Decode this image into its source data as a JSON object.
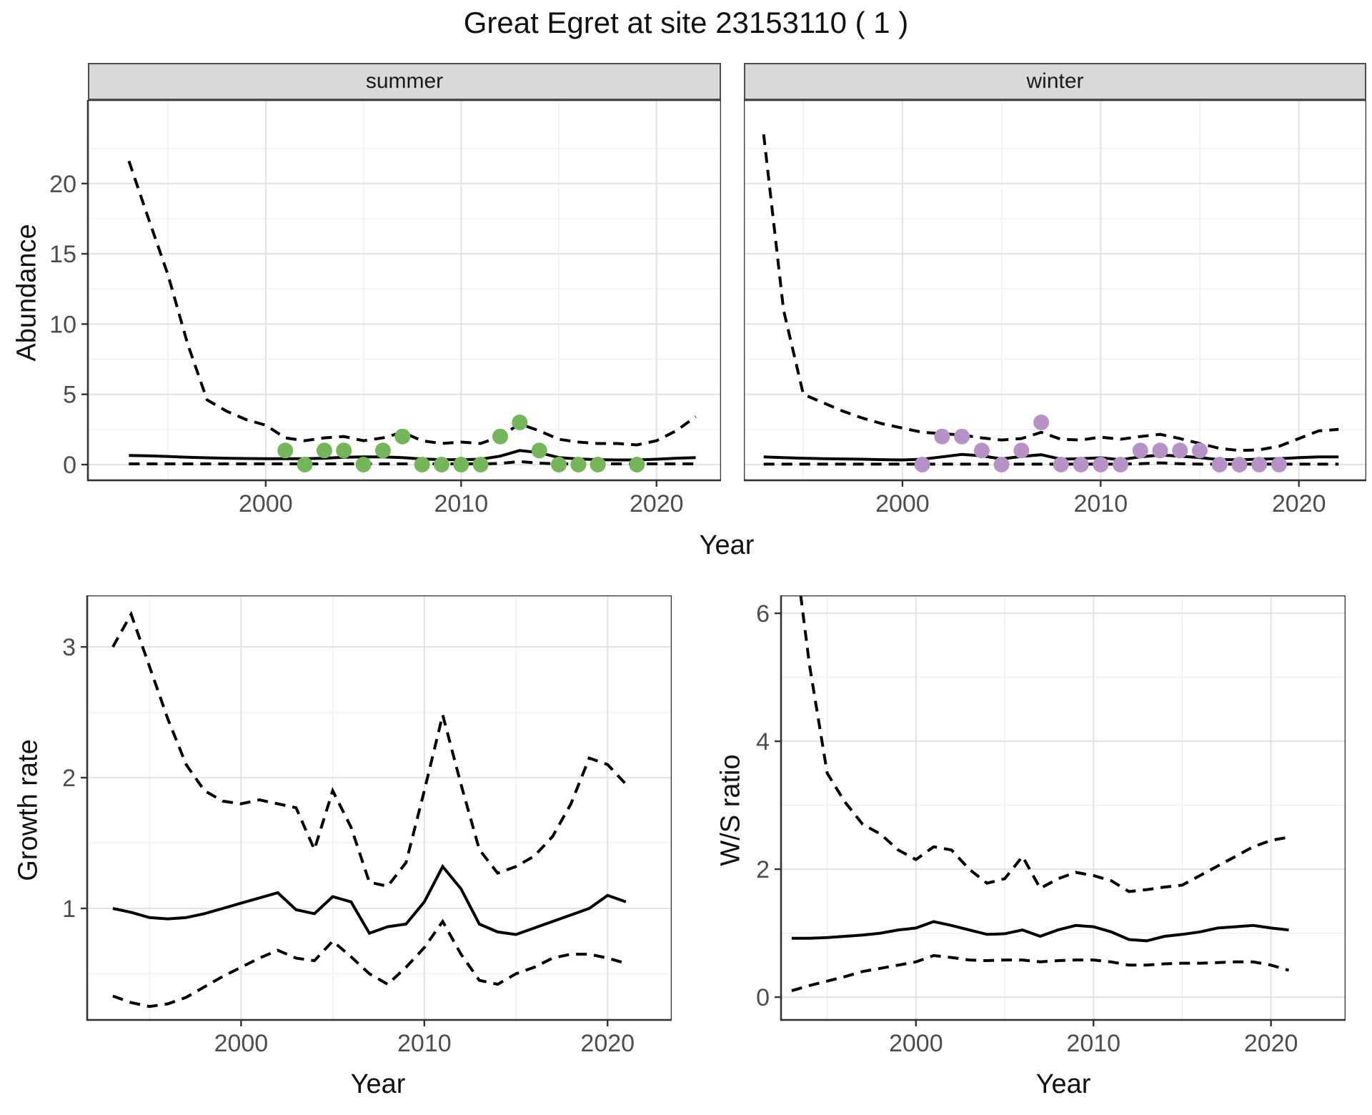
{
  "title": "Great Egret at site 23153110 ( 1 )",
  "facets": {
    "summer": "summer",
    "winter": "winter"
  },
  "axis_labels": {
    "abundance": "Abundance",
    "year_top": "Year",
    "growth": "Growth rate",
    "ws": "W/S ratio",
    "year_growth": "Year",
    "year_ws": "Year"
  },
  "colors": {
    "summer_points": "#74b659",
    "winter_points": "#b692c6",
    "line": "#000000",
    "grid_major": "#e4e4e4",
    "grid_minor": "#f0f0f0",
    "strip_bg": "#d9d9d9",
    "tick_text": "#4d4d4d",
    "border": "#333333",
    "panel_bg": "#ffffff"
  },
  "chart_data": [
    {
      "id": "summer-abundance",
      "type": "line",
      "facet": "summer",
      "xlabel": "Year",
      "ylabel": "Abundance",
      "xlim": [
        1990.9,
        2023.3
      ],
      "ylim": [
        -1.12,
        25.94
      ],
      "xticks": [
        2000,
        2010,
        2020
      ],
      "xminor": [
        1995,
        2005,
        2015
      ],
      "yticks": [
        0,
        5,
        10,
        15,
        20
      ],
      "yminor": [
        2.5,
        7.5,
        12.5,
        17.5,
        22.5
      ],
      "show_ytick_labels": true,
      "grid": true,
      "legend": "none",
      "years": [
        1993,
        1994,
        1995,
        1996,
        1997,
        1998,
        1999,
        2000,
        2001,
        2002,
        2003,
        2004,
        2005,
        2006,
        2007,
        2008,
        2009,
        2010,
        2011,
        2012,
        2013,
        2014,
        2015,
        2016,
        2017,
        2018,
        2019,
        2020,
        2021,
        2022
      ],
      "series": [
        {
          "name": "upper-95ci",
          "style": "dashed",
          "values": [
            21.6,
            17.5,
            13.5,
            8.6,
            4.6,
            3.8,
            3.2,
            2.8,
            1.9,
            1.7,
            1.9,
            2.0,
            1.7,
            1.9,
            2.3,
            1.7,
            1.5,
            1.6,
            1.5,
            2.0,
            2.9,
            2.4,
            1.8,
            1.6,
            1.5,
            1.5,
            1.4,
            1.7,
            2.4,
            3.4
          ]
        },
        {
          "name": "median",
          "style": "solid",
          "values": [
            0.65,
            0.62,
            0.58,
            0.52,
            0.48,
            0.45,
            0.43,
            0.42,
            0.42,
            0.42,
            0.45,
            0.52,
            0.55,
            0.55,
            0.5,
            0.4,
            0.35,
            0.35,
            0.38,
            0.6,
            1.0,
            0.85,
            0.5,
            0.4,
            0.35,
            0.33,
            0.33,
            0.38,
            0.45,
            0.5
          ]
        },
        {
          "name": "lower-95ci",
          "style": "dashed",
          "values": [
            0.05,
            0.05,
            0.05,
            0.05,
            0.05,
            0.05,
            0.05,
            0.05,
            0.05,
            0.05,
            0.05,
            0.05,
            0.05,
            0.05,
            0.05,
            0.05,
            0.05,
            0.05,
            0.05,
            0.08,
            0.22,
            0.1,
            0.05,
            0.05,
            0.05,
            0.05,
            0.05,
            0.05,
            0.05,
            0.05
          ]
        }
      ],
      "points": {
        "name": "observed-counts-summer",
        "color_key": "summer_points",
        "years": [
          2001,
          2002,
          2003,
          2004,
          2005,
          2006,
          2007,
          2008,
          2009,
          2010,
          2011,
          2012,
          2013,
          2014,
          2015,
          2016,
          2017,
          2019
        ],
        "values": [
          1,
          0,
          1,
          1,
          0,
          1,
          2,
          0,
          0,
          0,
          0,
          2,
          3,
          1,
          0,
          0,
          0,
          0
        ]
      }
    },
    {
      "id": "winter-abundance",
      "type": "line",
      "facet": "winter",
      "xlabel": "Year",
      "ylabel": "Abundance",
      "xlim": [
        1992.0,
        2023.4
      ],
      "ylim": [
        -1.12,
        25.94
      ],
      "xticks": [
        2000,
        2010,
        2020
      ],
      "xminor": [
        1995,
        2005,
        2015
      ],
      "yticks": [
        0,
        5,
        10,
        15,
        20
      ],
      "yminor": [
        2.5,
        7.5,
        12.5,
        17.5,
        22.5
      ],
      "show_ytick_labels": false,
      "grid": true,
      "legend": "none",
      "years": [
        1993,
        1994,
        1995,
        1996,
        1997,
        1998,
        1999,
        2000,
        2001,
        2002,
        2003,
        2004,
        2005,
        2006,
        2007,
        2008,
        2009,
        2010,
        2011,
        2012,
        2013,
        2014,
        2015,
        2016,
        2017,
        2018,
        2019,
        2020,
        2021,
        2022
      ],
      "series": [
        {
          "name": "upper-95ci",
          "style": "dashed",
          "values": [
            23.5,
            11.0,
            5.0,
            4.4,
            3.8,
            3.3,
            2.9,
            2.6,
            2.3,
            2.2,
            2.1,
            1.9,
            1.75,
            1.85,
            2.3,
            1.8,
            1.75,
            1.95,
            1.8,
            2.0,
            2.15,
            1.85,
            1.5,
            1.15,
            1.0,
            1.05,
            1.3,
            1.85,
            2.4,
            2.5
          ]
        },
        {
          "name": "median",
          "style": "solid",
          "values": [
            0.55,
            0.5,
            0.45,
            0.42,
            0.4,
            0.38,
            0.35,
            0.33,
            0.38,
            0.55,
            0.72,
            0.62,
            0.4,
            0.58,
            0.7,
            0.38,
            0.42,
            0.48,
            0.35,
            0.55,
            0.68,
            0.6,
            0.5,
            0.35,
            0.35,
            0.38,
            0.42,
            0.5,
            0.55,
            0.55
          ]
        },
        {
          "name": "lower-95ci",
          "style": "dashed",
          "values": [
            0.03,
            0.03,
            0.03,
            0.03,
            0.03,
            0.03,
            0.03,
            0.03,
            0.03,
            0.03,
            0.03,
            0.03,
            0.03,
            0.03,
            0.03,
            0.03,
            0.03,
            0.03,
            0.03,
            0.06,
            0.12,
            0.06,
            0.03,
            0.03,
            0.03,
            0.03,
            0.03,
            0.03,
            0.03,
            0.03
          ]
        }
      ],
      "points": {
        "name": "observed-counts-winter",
        "color_key": "winter_points",
        "years": [
          2001,
          2002,
          2003,
          2004,
          2005,
          2006,
          2007,
          2008,
          2009,
          2010,
          2011,
          2012,
          2013,
          2014,
          2015,
          2016,
          2017,
          2018,
          2019
        ],
        "values": [
          0,
          2,
          2,
          1,
          0,
          1,
          3,
          0,
          0,
          0,
          0,
          1,
          1,
          1,
          1,
          0,
          0,
          0,
          0
        ]
      }
    },
    {
      "id": "growth-rate",
      "type": "line",
      "facet": "",
      "xlabel": "Year",
      "ylabel": "Growth rate",
      "xlim": [
        1991.6,
        2023.5
      ],
      "ylim": [
        0.147,
        3.394
      ],
      "xticks": [
        2000,
        2010,
        2020
      ],
      "xminor": [
        1995,
        2005,
        2015
      ],
      "yticks": [
        1,
        2,
        3
      ],
      "yminor": [
        0.5,
        1.5,
        2.5
      ],
      "show_ytick_labels": true,
      "grid": true,
      "legend": "none",
      "years": [
        1993,
        1994,
        1995,
        1996,
        1997,
        1998,
        1999,
        2000,
        2001,
        2002,
        2003,
        2004,
        2005,
        2006,
        2007,
        2008,
        2009,
        2010,
        2011,
        2012,
        2013,
        2014,
        2015,
        2016,
        2017,
        2018,
        2019,
        2020,
        2021
      ],
      "series": [
        {
          "name": "upper-95ci",
          "style": "dashed",
          "values": [
            3.0,
            3.25,
            2.85,
            2.45,
            2.1,
            1.9,
            1.82,
            1.8,
            1.83,
            1.8,
            1.77,
            1.45,
            1.9,
            1.62,
            1.2,
            1.17,
            1.35,
            1.9,
            2.48,
            1.95,
            1.45,
            1.27,
            1.32,
            1.4,
            1.55,
            1.8,
            2.15,
            2.1,
            1.95
          ]
        },
        {
          "name": "median",
          "style": "solid",
          "values": [
            1.0,
            0.97,
            0.93,
            0.92,
            0.93,
            0.96,
            1.0,
            1.04,
            1.08,
            1.12,
            0.99,
            0.96,
            1.09,
            1.05,
            0.81,
            0.86,
            0.88,
            1.05,
            1.32,
            1.15,
            0.88,
            0.82,
            0.8,
            0.85,
            0.9,
            0.95,
            1.0,
            1.1,
            1.05
          ]
        },
        {
          "name": "lower-95ci",
          "style": "dashed",
          "values": [
            0.33,
            0.28,
            0.25,
            0.27,
            0.32,
            0.4,
            0.48,
            0.55,
            0.62,
            0.68,
            0.62,
            0.6,
            0.75,
            0.63,
            0.5,
            0.42,
            0.55,
            0.7,
            0.9,
            0.65,
            0.45,
            0.42,
            0.5,
            0.55,
            0.62,
            0.65,
            0.65,
            0.62,
            0.58
          ]
        }
      ],
      "points": null
    },
    {
      "id": "ws-ratio",
      "type": "line",
      "facet": "",
      "xlabel": "Year",
      "ylabel": "W/S ratio",
      "xlim": [
        1992.4,
        2024.2
      ],
      "ylim": [
        -0.357,
        6.28
      ],
      "xticks": [
        2000,
        2010,
        2020
      ],
      "xminor": [
        1995,
        2005,
        2015
      ],
      "yticks": [
        0,
        2,
        4,
        6
      ],
      "yminor": [
        1,
        3,
        5
      ],
      "show_ytick_labels": true,
      "grid": true,
      "legend": "none",
      "years": [
        1993,
        1994,
        1995,
        1996,
        1997,
        1998,
        1999,
        2000,
        2001,
        2002,
        2003,
        2004,
        2005,
        2006,
        2007,
        2008,
        2009,
        2010,
        2011,
        2012,
        2013,
        2014,
        2015,
        2016,
        2017,
        2018,
        2019,
        2020,
        2021
      ],
      "series": [
        {
          "name": "upper-95ci",
          "style": "dashed",
          "values": [
            7.4,
            5.2,
            3.5,
            3.05,
            2.7,
            2.55,
            2.3,
            2.15,
            2.35,
            2.3,
            2.0,
            1.78,
            1.85,
            2.2,
            1.7,
            1.85,
            1.95,
            1.9,
            1.82,
            1.65,
            1.68,
            1.72,
            1.75,
            1.9,
            2.05,
            2.2,
            2.35,
            2.45,
            2.5
          ]
        },
        {
          "name": "median",
          "style": "solid",
          "values": [
            0.92,
            0.92,
            0.93,
            0.95,
            0.97,
            1.0,
            1.05,
            1.08,
            1.18,
            1.12,
            1.05,
            0.98,
            0.99,
            1.05,
            0.95,
            1.05,
            1.12,
            1.1,
            1.02,
            0.9,
            0.88,
            0.95,
            0.98,
            1.02,
            1.08,
            1.1,
            1.12,
            1.08,
            1.05
          ]
        },
        {
          "name": "lower-95ci",
          "style": "dashed",
          "values": [
            0.1,
            0.18,
            0.25,
            0.32,
            0.4,
            0.45,
            0.5,
            0.55,
            0.65,
            0.62,
            0.58,
            0.57,
            0.58,
            0.58,
            0.55,
            0.57,
            0.58,
            0.58,
            0.55,
            0.5,
            0.5,
            0.52,
            0.53,
            0.53,
            0.54,
            0.55,
            0.55,
            0.5,
            0.42
          ]
        }
      ],
      "points": null
    }
  ]
}
